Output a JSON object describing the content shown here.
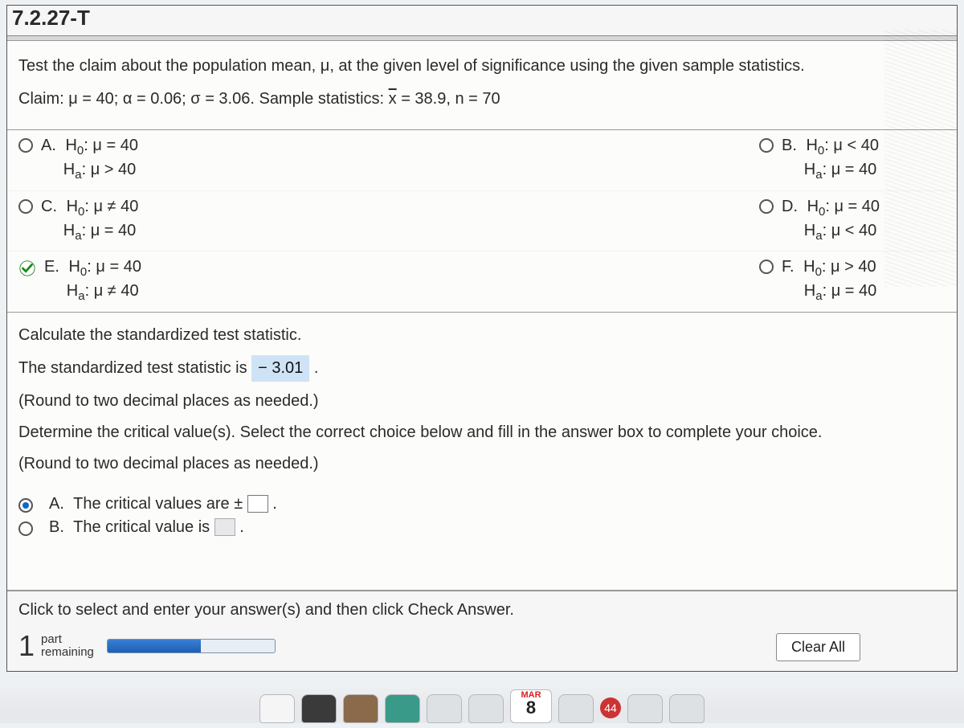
{
  "header": {
    "code": "7.2.27-T"
  },
  "question": {
    "prompt": "Test the claim about the population mean, μ, at the given level of significance using the given sample statistics.",
    "claim_prefix": "Claim: μ = 40; α = 0.06; σ = 3.06. Sample statistics: ",
    "claim_xbar_label": "x",
    "claim_suffix": " = 38.9, n = 70"
  },
  "options": {
    "A": {
      "label": "A.",
      "h0": "H",
      "h0_sub": "0",
      "h0_rest": ": μ = 40",
      "ha": "H",
      "ha_sub": "a",
      "ha_rest": ": μ > 40",
      "state": "unselected"
    },
    "B": {
      "label": "B.",
      "h0": "H",
      "h0_sub": "0",
      "h0_rest": ": μ < 40",
      "ha": "H",
      "ha_sub": "a",
      "ha_rest": ": μ = 40",
      "state": "unselected"
    },
    "C": {
      "label": "C.",
      "h0": "H",
      "h0_sub": "0",
      "h0_rest": ": μ ≠ 40",
      "ha": "H",
      "ha_sub": "a",
      "ha_rest": ": μ = 40",
      "state": "unselected"
    },
    "D": {
      "label": "D.",
      "h0": "H",
      "h0_sub": "0",
      "h0_rest": ": μ = 40",
      "ha": "H",
      "ha_sub": "a",
      "ha_rest": ": μ < 40",
      "state": "unselected"
    },
    "E": {
      "label": "E.",
      "h0": "H",
      "h0_sub": "0",
      "h0_rest": ": μ = 40",
      "ha": "H",
      "ha_sub": "a",
      "ha_rest": ": μ ≠ 40",
      "state": "checked"
    },
    "F": {
      "label": "F.",
      "h0": "H",
      "h0_sub": "0",
      "h0_rest": ": μ > 40",
      "ha": "H",
      "ha_sub": "a",
      "ha_rest": ": μ = 40",
      "state": "unselected"
    }
  },
  "calc": {
    "heading": "Calculate the standardized test statistic.",
    "line_pre": "The standardized test statistic is ",
    "value": "− 3.01",
    "line_post": " .",
    "round": "(Round to two decimal places as needed.)"
  },
  "critical": {
    "prompt": "Determine the critical value(s). Select the correct choice below and fill in the answer box to complete your choice.",
    "round": "(Round to two decimal places as needed.)",
    "A": {
      "label": "A.",
      "text_pre": "The critical values are ± ",
      "state": "selected"
    },
    "B": {
      "label": "B.",
      "text_pre": "The critical value is ",
      "state": "unselected"
    }
  },
  "footer": {
    "instruction": "Click to select and enter your answer(s) and then click Check Answer.",
    "parts_num": "1",
    "parts_label1": "part",
    "parts_label2": "remaining",
    "progress_pct": 56,
    "clear_label": "Clear All"
  },
  "dock": {
    "cal_month": "MAR",
    "cal_day": "8",
    "badge": "44"
  },
  "colors": {
    "accent": "#0b67c9",
    "answer_bg": "#cfe3f7",
    "page_bg": "#fcfcfa",
    "body_bg": "#eef1f3"
  }
}
